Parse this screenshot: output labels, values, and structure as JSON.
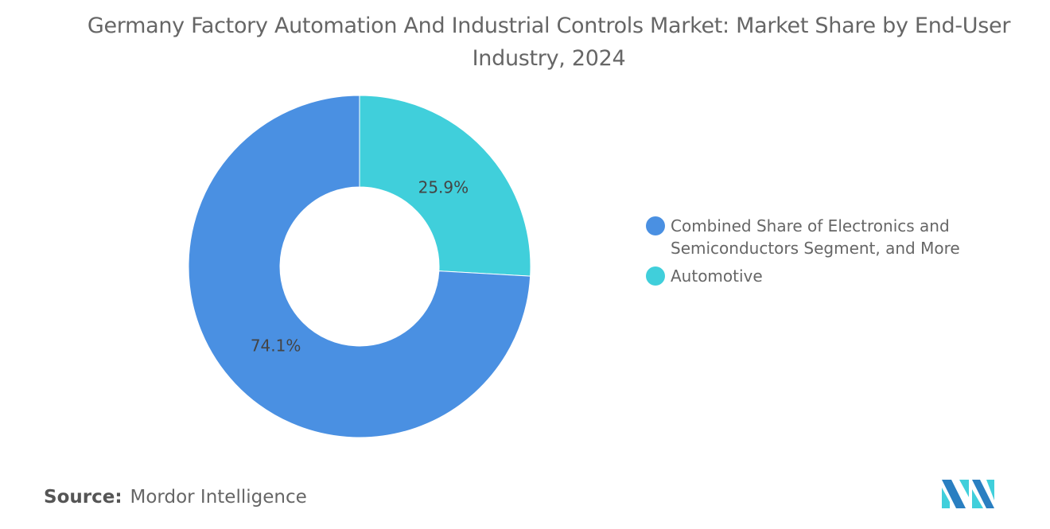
{
  "chart_data": {
    "type": "pie",
    "variant": "donut",
    "title": "Germany Factory Automation And Industrial Controls Market: Market Share by End-User Industry, 2024",
    "slices": [
      {
        "label": "Automotive",
        "value": 25.9,
        "display": "25.9%",
        "color": "#40cfdb"
      },
      {
        "label": "Combined Share of Electronics and Semiconductors Segment, and More",
        "value": 74.1,
        "display": "74.1%",
        "color": "#4a90e2"
      }
    ],
    "legend": [
      {
        "label": "Combined Share of Electronics and Semiconductors Segment, and More",
        "color": "#4a90e2"
      },
      {
        "label": "Automotive",
        "color": "#40cfdb"
      }
    ],
    "legend_position": "right"
  },
  "source": {
    "label": "Source:",
    "value": "Mordor Intelligence"
  },
  "logo": {
    "text": "Mordor Intelligence",
    "colors": [
      "#2a7fc1",
      "#40cfdb"
    ]
  }
}
